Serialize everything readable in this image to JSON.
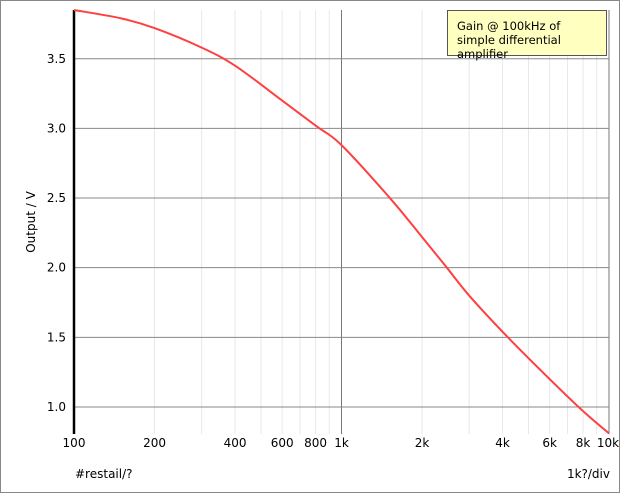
{
  "chart_data": {
    "type": "line",
    "title": "",
    "xlabel": "#restail/?",
    "x_unit_label": "1k?/div",
    "ylabel": "Output / V",
    "x_scale": "log",
    "xlim": [
      100,
      10000
    ],
    "ylim": [
      0.806,
      3.85
    ],
    "grid": true,
    "legend_position": "top-right",
    "x_ticks": [
      {
        "value": 100,
        "label": "100"
      },
      {
        "value": 200,
        "label": "200"
      },
      {
        "value": 400,
        "label": "400"
      },
      {
        "value": 600,
        "label": "600"
      },
      {
        "value": 800,
        "label": "800"
      },
      {
        "value": 1000,
        "label": "1k"
      },
      {
        "value": 2000,
        "label": "2k"
      },
      {
        "value": 4000,
        "label": "4k"
      },
      {
        "value": 6000,
        "label": "6k"
      },
      {
        "value": 8000,
        "label": "8k"
      },
      {
        "value": 10000,
        "label": "10k"
      }
    ],
    "y_ticks": [
      {
        "value": 1.0,
        "label": "1.0"
      },
      {
        "value": 1.5,
        "label": "1.5"
      },
      {
        "value": 2.0,
        "label": "2.0"
      },
      {
        "value": 2.5,
        "label": "2.5"
      },
      {
        "value": 3.0,
        "label": "3.0"
      },
      {
        "value": 3.5,
        "label": "3.5"
      }
    ],
    "series": [
      {
        "name": "Gain @ 100kHz of simple differential amplifier",
        "color": "#ff4040",
        "x": [
          100,
          150,
          200,
          300,
          400,
          600,
          800,
          1000,
          1517,
          2000,
          2477,
          3000,
          4188,
          6000,
          8000,
          10000
        ],
        "y": [
          3.85,
          3.79,
          3.72,
          3.58,
          3.45,
          3.2,
          3.02,
          2.88,
          2.5,
          2.22,
          2.0,
          1.8,
          1.5,
          1.2,
          0.97,
          0.81
        ]
      }
    ],
    "legend_lines": [
      "Gain @ 100kHz of",
      "simple differential amplifier"
    ]
  }
}
